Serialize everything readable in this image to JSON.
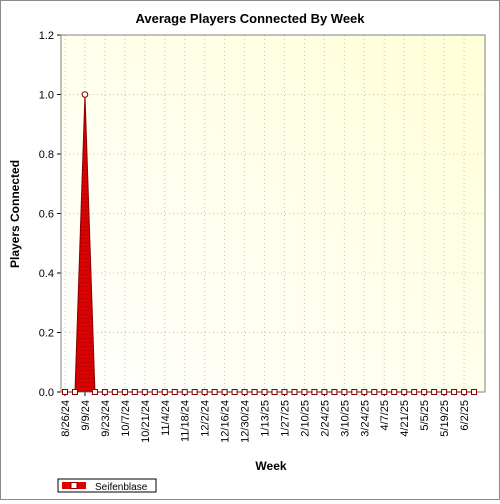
{
  "chart_data": {
    "type": "area",
    "title": "Average Players Connected By Week",
    "xlabel": "Week",
    "ylabel": "Players Connected",
    "ylim": [
      0,
      1.2
    ],
    "yticks": [
      "0.0",
      "0.2",
      "0.4",
      "0.6",
      "0.8",
      "1.0",
      "1.2"
    ],
    "x": [
      "8/26/24",
      "9/2/24",
      "9/9/24",
      "9/16/24",
      "9/23/24",
      "9/30/24",
      "10/7/24",
      "10/14/24",
      "10/21/24",
      "10/28/24",
      "11/4/24",
      "11/11/24",
      "11/18/24",
      "11/25/24",
      "12/2/24",
      "12/9/24",
      "12/16/24",
      "12/23/24",
      "12/30/24",
      "1/6/25",
      "1/13/25",
      "1/20/25",
      "1/27/25",
      "2/3/25",
      "2/10/25",
      "2/17/25",
      "2/24/25",
      "3/3/25",
      "3/10/25",
      "3/17/25",
      "3/24/25",
      "3/31/25",
      "4/7/25",
      "4/14/25",
      "4/21/25",
      "4/28/25",
      "5/5/25",
      "5/12/25",
      "5/19/25",
      "5/26/25",
      "6/2/25",
      "6/9/25"
    ],
    "xtick_labels": [
      "8/26/24",
      "9/9/24",
      "9/23/24",
      "10/7/24",
      "10/21/24",
      "11/4/24",
      "11/18/24",
      "12/2/24",
      "12/16/24",
      "12/30/24",
      "1/13/25",
      "1/27/25",
      "2/10/25",
      "2/24/25",
      "3/10/25",
      "3/24/25",
      "4/7/25",
      "4/21/25",
      "5/5/25",
      "5/19/25",
      "6/2/25"
    ],
    "series": [
      {
        "name": "Seifenblase",
        "values": [
          0,
          0,
          1.0,
          0,
          0,
          0,
          0,
          0,
          0,
          0,
          0,
          0,
          0,
          0,
          0,
          0,
          0,
          0,
          0,
          0,
          0,
          0,
          0,
          0,
          0,
          0,
          0,
          0,
          0,
          0,
          0,
          0,
          0,
          0,
          0,
          0,
          0,
          0,
          0,
          0,
          0,
          0
        ]
      }
    ],
    "grid": true,
    "legend": "bottom-left",
    "colors": {
      "series": "#dd0000",
      "series_edge": "#880000",
      "plot_bg_light": "#ffffff",
      "plot_bg_dark": "#ffffd8",
      "grid": "#c8c8a0"
    }
  }
}
